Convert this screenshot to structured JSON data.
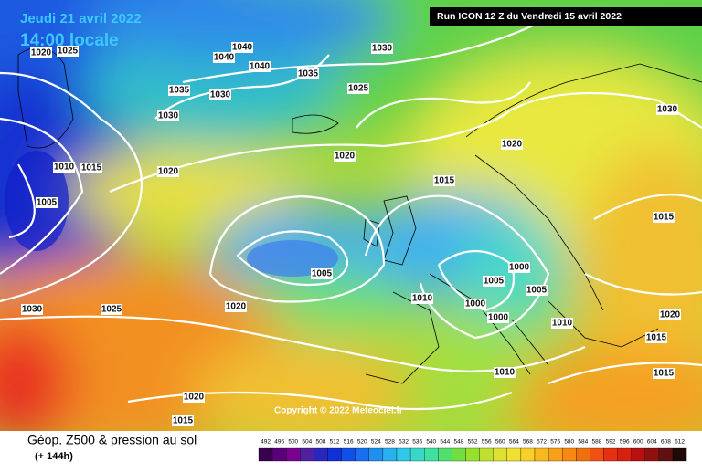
{
  "header": {
    "date": "Jeudi 21 avril 2022",
    "time": "14:00 locale",
    "run": "Run ICON 12 Z du Vendredi 15 avril 2022"
  },
  "isobar_labels": [
    "1020",
    "1025",
    "1040",
    "1040",
    "1040",
    "1030",
    "1035",
    "1025",
    "1035",
    "1030",
    "1030",
    "1010",
    "1015",
    "1020",
    "1020",
    "1015",
    "1020",
    "1030",
    "1005",
    "1015",
    "1005",
    "1000",
    "1005",
    "1000",
    "1000",
    "1005",
    "1010",
    "1010",
    "1020",
    "1025",
    "1030",
    "1020",
    "1015",
    "1010",
    "1015",
    "1020",
    "1015"
  ],
  "copyright": "Copyright © 2022 Meteociel.fr",
  "footer": {
    "title": "Géop. Z500 & pression au sol",
    "subtitle": "(+ 144h)"
  },
  "colorbar": {
    "labels": [
      "492",
      "496",
      "500",
      "504",
      "508",
      "512",
      "516",
      "520",
      "524",
      "528",
      "532",
      "536",
      "540",
      "544",
      "548",
      "552",
      "556",
      "560",
      "564",
      "568",
      "572",
      "576",
      "580",
      "584",
      "588",
      "592",
      "596",
      "600",
      "604",
      "608",
      "612"
    ]
  }
}
